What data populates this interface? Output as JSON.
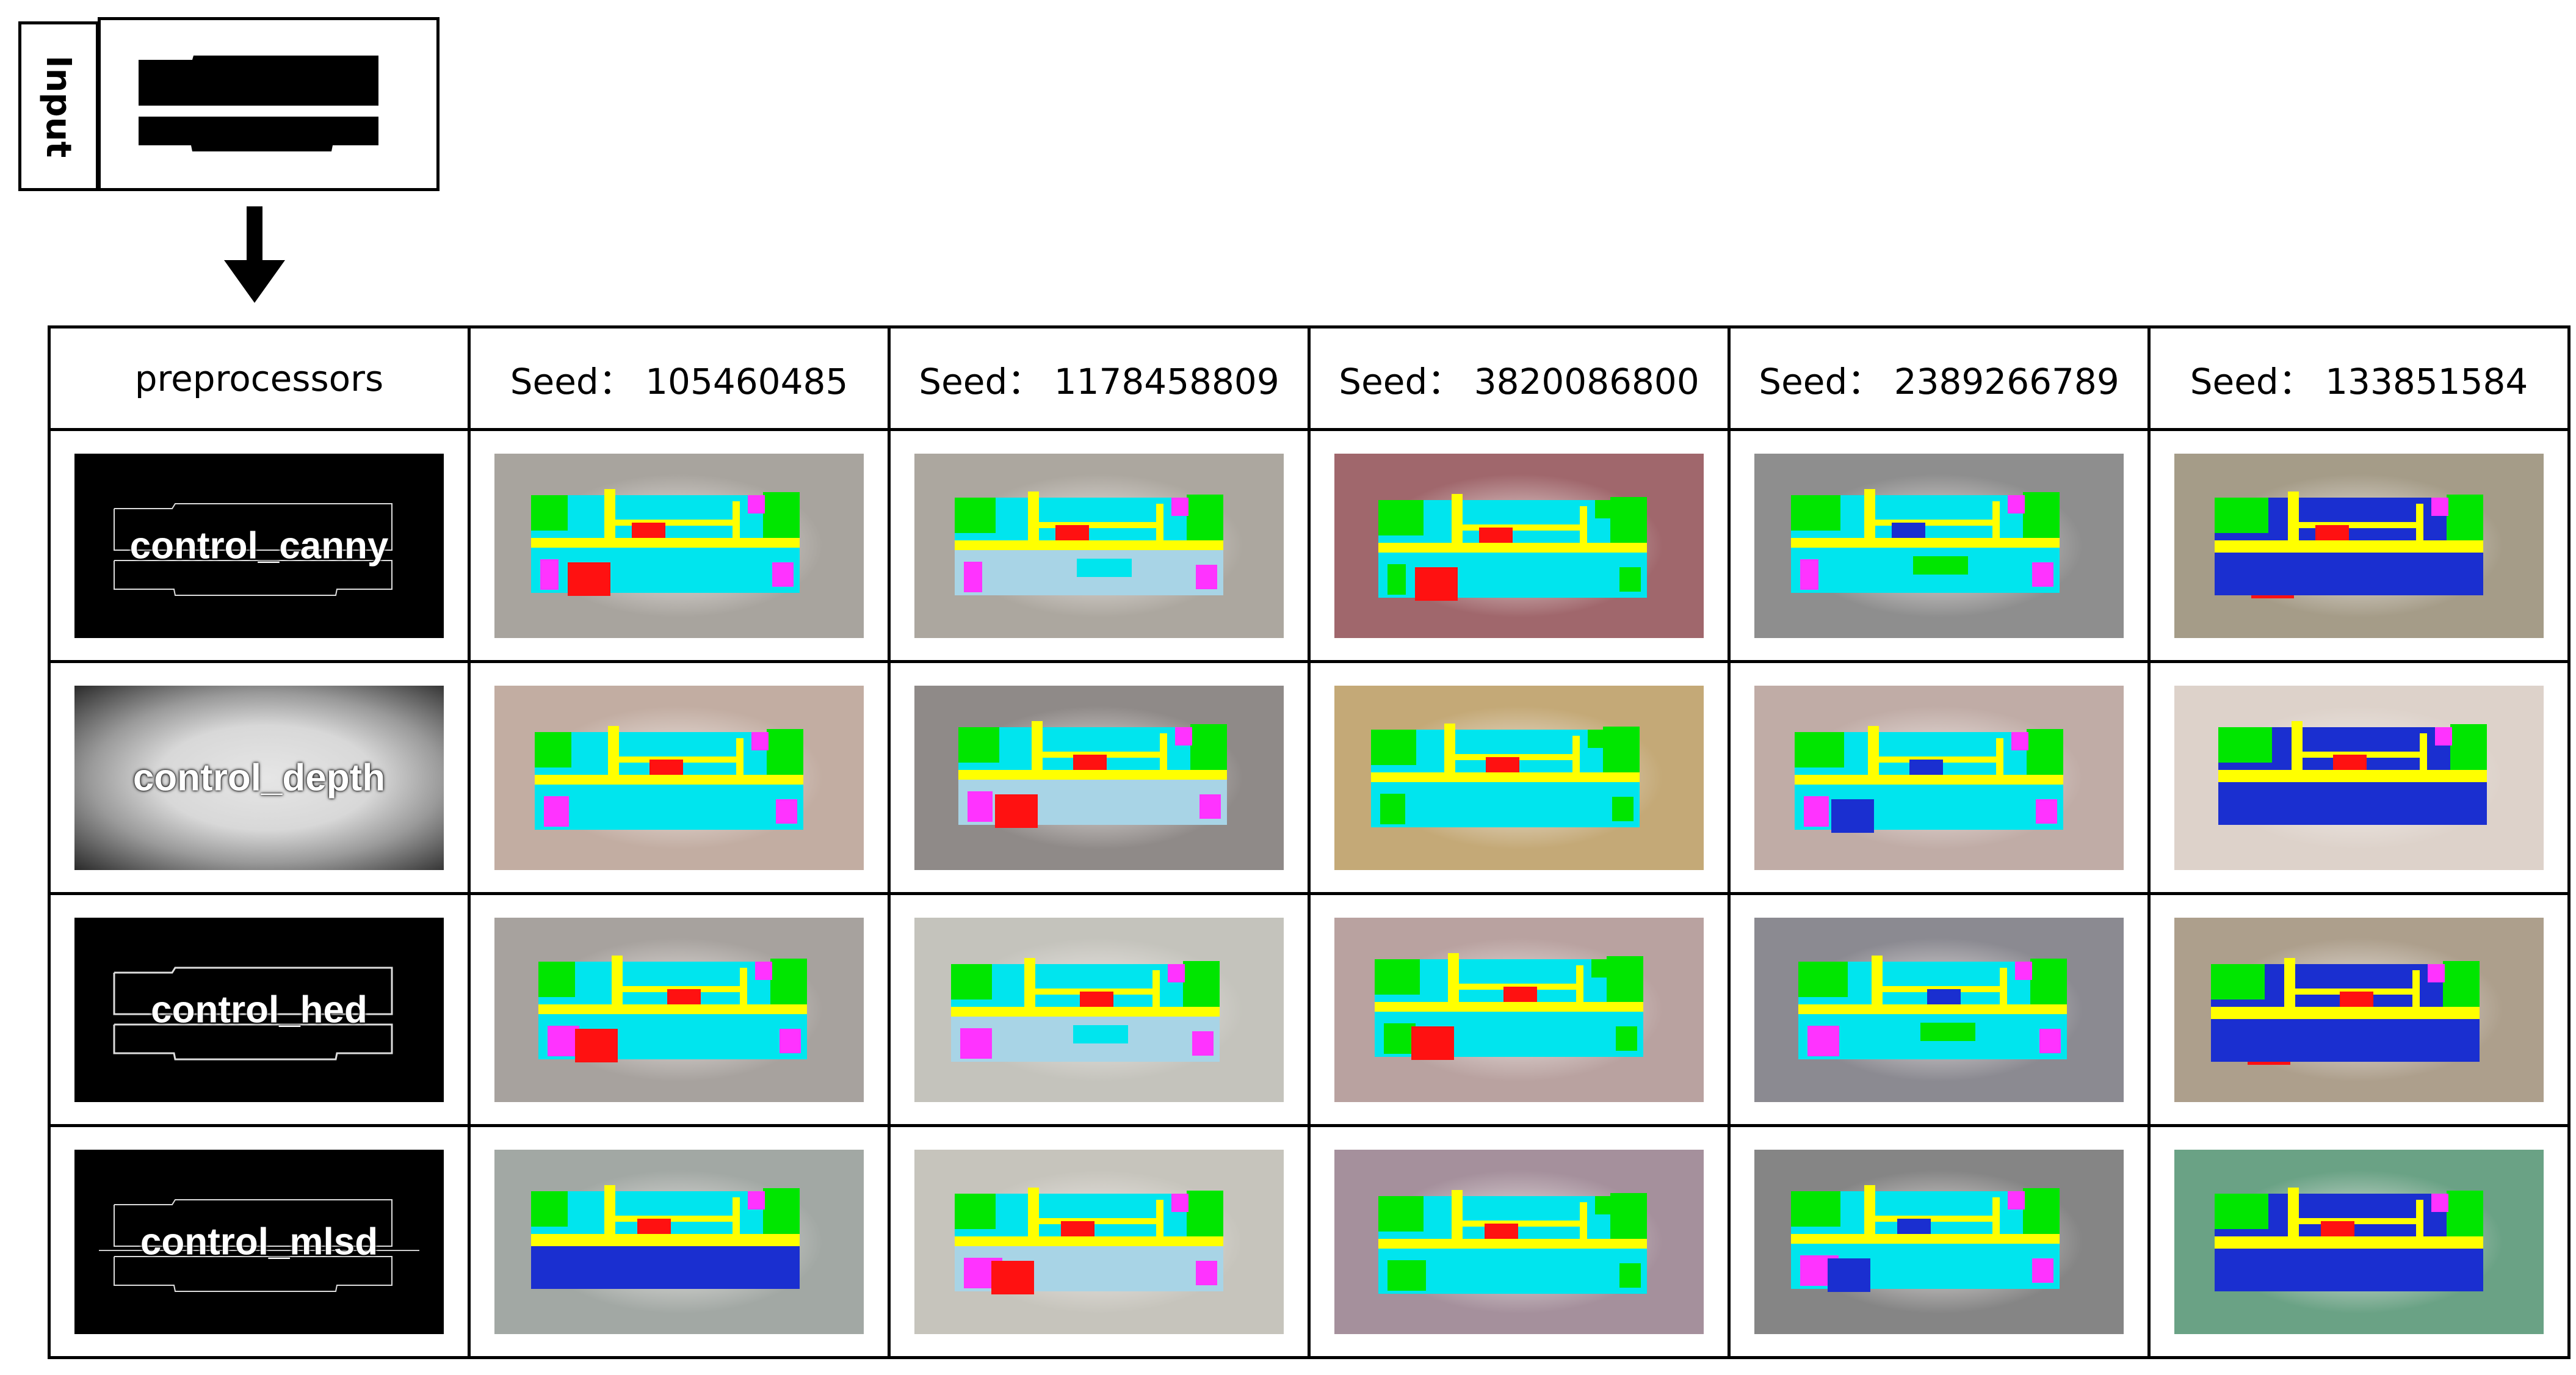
{
  "input_label": "Input",
  "header": {
    "preprocessors": "preprocessors",
    "seeds": [
      "Seed： 105460485",
      "Seed： 1178458809",
      "Seed： 3820086800",
      "Seed： 2389266789",
      "Seed： 133851584"
    ]
  },
  "rows": [
    {
      "name": "control_canny"
    },
    {
      "name": "control_depth"
    },
    {
      "name": "control_hed"
    },
    {
      "name": "control_mlsd"
    }
  ],
  "colors": {
    "cyan": "#00e5ee",
    "yellow": "#ffff00",
    "green": "#00e600",
    "magenta": "#ff33ff",
    "red": "#ff1111",
    "blue": "#1a2fd0",
    "purple": "#9933ff",
    "lightblue": "#a8d4e6",
    "teal": "#0099cc"
  },
  "backgrounds": [
    [
      "#a8a49e",
      "#aca79f",
      "#a0676c",
      "#8e8e8e",
      "#a59c88"
    ],
    [
      "#c2ada2",
      "#8f8a88",
      "#c4a977",
      "#c0aca6",
      "#ddd2ca"
    ],
    [
      "#a7a29e",
      "#c4c3bc",
      "#b9a2a0",
      "#8b8a91",
      "#ad9f8c"
    ],
    [
      "#a2a8a4",
      "#c6c4bc",
      "#a5909c",
      "#858585",
      "#6aa285"
    ]
  ]
}
